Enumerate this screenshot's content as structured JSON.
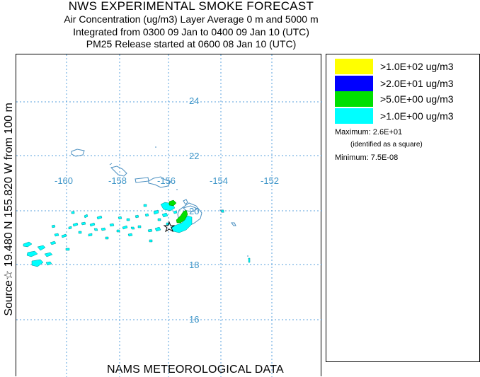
{
  "header": {
    "title": "NWS EXPERIMENTAL SMOKE FORECAST",
    "line2": "Air Concentration (ug/m3) Layer Average    0 m and  5000 m",
    "line3": "Integrated from 0300 09 Jan to 0400 09 Jan 10 (UTC)",
    "line4": "PM25 Release started at 0600 08 Jan 10 (UTC)"
  },
  "side_label": "Source☆ 19.480 N 155.820  W      from  100 m",
  "bottom_label": "NAMS METEOROLOGICAL DATA",
  "map": {
    "lon_labels": [
      "-160",
      "-158",
      "-156",
      "-154",
      "-152"
    ],
    "lat_labels": [
      "24",
      "22",
      "20",
      "18",
      "16"
    ],
    "gridline_color": "#5aa0dc",
    "label_color": "#3d95c8",
    "coast_color": "#4a8fc0"
  },
  "legend": {
    "items": [
      {
        "label": ">1.0E+02 ug/m3",
        "color": "#ffff00"
      },
      {
        "label": ">2.0E+01 ug/m3",
        "color": "#0000ff"
      },
      {
        "label": ">5.0E+00 ug/m3",
        "color": "#00e000"
      },
      {
        "label": ">1.0E+00 ug/m3",
        "color": "#00ffff"
      }
    ],
    "maximum": "Maximum: 2.6E+01",
    "square_note": "(identified as a square)",
    "minimum": "Minimum: 7.5E-08"
  }
}
